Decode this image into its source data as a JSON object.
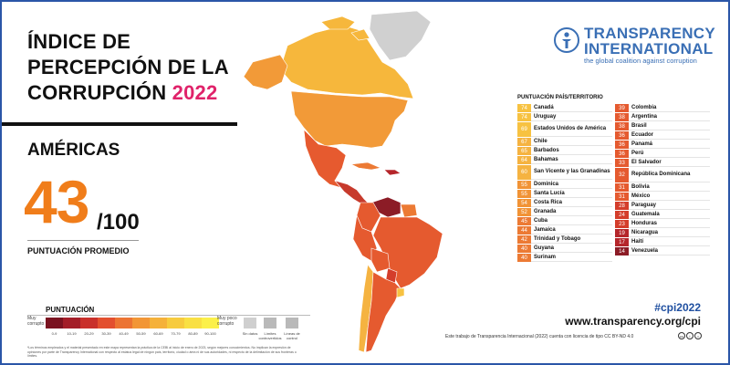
{
  "title": {
    "line1": "ÍNDICE DE",
    "line2": "PERCEPCIÓN DE LA",
    "line3": "CORRUPCIÓN",
    "year": "2022"
  },
  "region": {
    "name": "AMÉRICAS",
    "score": "43",
    "max": "/100",
    "score_label": "PUNTUACIÓN PROMEDIO"
  },
  "brand": {
    "name_line1": "TRANSPARENCY",
    "name_line2": "INTERNATIONAL",
    "tagline": "the global coalition against corruption",
    "color": "#3a6fb5"
  },
  "table": {
    "header": "PUNTUACIÓN  PAÍS/TERRITORIO",
    "col1": [
      {
        "score": "74",
        "country": "Canadá",
        "color": "#f7c241"
      },
      {
        "score": "74",
        "country": "Uruguay",
        "color": "#f7c241"
      },
      {
        "score": "69",
        "country": "Estados Unidos de América",
        "color": "#f7c241"
      },
      {
        "score": "67",
        "country": "Chile",
        "color": "#f5b341"
      },
      {
        "score": "65",
        "country": "Barbados",
        "color": "#f5b341"
      },
      {
        "score": "64",
        "country": "Bahamas",
        "color": "#f5b341"
      },
      {
        "score": "60",
        "country": "San Vicente y las Granadinas",
        "color": "#f5b341"
      },
      {
        "score": "55",
        "country": "Dominica",
        "color": "#f19336"
      },
      {
        "score": "55",
        "country": "Santa Lucía",
        "color": "#f19336"
      },
      {
        "score": "54",
        "country": "Costa Rica",
        "color": "#f19336"
      },
      {
        "score": "52",
        "country": "Granada",
        "color": "#f19336"
      },
      {
        "score": "45",
        "country": "Cuba",
        "color": "#ec7a34"
      },
      {
        "score": "44",
        "country": "Jamaica",
        "color": "#ec7a34"
      },
      {
        "score": "42",
        "country": "Trinidad y Tobago",
        "color": "#ec7a34"
      },
      {
        "score": "40",
        "country": "Guyana",
        "color": "#ec7a34"
      },
      {
        "score": "40",
        "country": "Surinam",
        "color": "#ec7a34"
      }
    ],
    "col2": [
      {
        "score": "39",
        "country": "Colombia",
        "color": "#e55a2f"
      },
      {
        "score": "38",
        "country": "Argentina",
        "color": "#e55a2f"
      },
      {
        "score": "38",
        "country": "Brasil",
        "color": "#e55a2f"
      },
      {
        "score": "36",
        "country": "Ecuador",
        "color": "#e55a2f"
      },
      {
        "score": "36",
        "country": "Panamá",
        "color": "#e55a2f"
      },
      {
        "score": "36",
        "country": "Perú",
        "color": "#e55a2f"
      },
      {
        "score": "33",
        "country": "El Salvador",
        "color": "#e55a2f"
      },
      {
        "score": "32",
        "country": "República Dominicana",
        "color": "#e55a2f"
      },
      {
        "score": "31",
        "country": "Bolivia",
        "color": "#e55a2f"
      },
      {
        "score": "31",
        "country": "México",
        "color": "#e55a2f"
      },
      {
        "score": "28",
        "country": "Paraguay",
        "color": "#d43d2b"
      },
      {
        "score": "24",
        "country": "Guatemala",
        "color": "#d43d2b"
      },
      {
        "score": "23",
        "country": "Honduras",
        "color": "#d43d2b"
      },
      {
        "score": "19",
        "country": "Nicaragua",
        "color": "#b5262b"
      },
      {
        "score": "17",
        "country": "Haití",
        "color": "#b5262b"
      },
      {
        "score": "14",
        "country": "Venezuela",
        "color": "#8c1c26"
      }
    ]
  },
  "legend": {
    "title": "PUNTUACIÓN",
    "low_label": "Muy corrupto",
    "high_label": "Muy poco corrupto",
    "bins": [
      {
        "label": "0-9",
        "color": "#7a1220"
      },
      {
        "label": "10-19",
        "color": "#a31d28"
      },
      {
        "label": "20-29",
        "color": "#c9302b"
      },
      {
        "label": "30-39",
        "color": "#e34f2f"
      },
      {
        "label": "40-49",
        "color": "#ec7433"
      },
      {
        "label": "50-59",
        "color": "#f29636"
      },
      {
        "label": "60-69",
        "color": "#f5b13a"
      },
      {
        "label": "70-79",
        "color": "#f7cb3e"
      },
      {
        "label": "80-89",
        "color": "#f9e043"
      },
      {
        "label": "90-100",
        "color": "#fbf04a"
      }
    ],
    "no_data": "Sin datos",
    "disputed": "Límites controvertidos",
    "control": "Líneas de control"
  },
  "footnote": "*Los términos empleados y el material presentado en este mapa representan la práctica de la CEBI al inicio de enero de 2023, según mejores conocimientos. No implican la expresión de opiniones por parte de Transparency International con respecto al estatus legal de ningún país, territorio, ciudad o área ni de sus autoridades, ni respecto de la delimitación de sus fronteras o límites.",
  "footer": {
    "hashtag": "#cpi2022",
    "url": "www.transparency.org/cpi",
    "license": "Este trabajo de Transparencia Internacional (2022) cuenta con licencia de tipo CC BY-ND 4.0"
  }
}
